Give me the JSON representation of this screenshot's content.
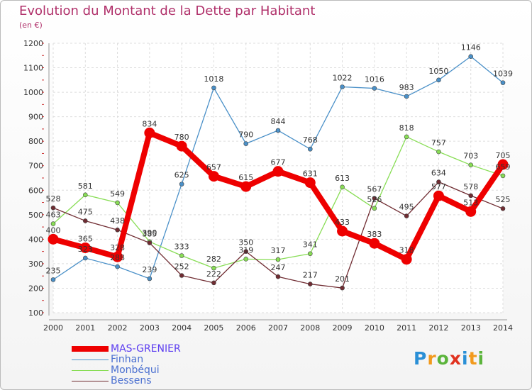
{
  "header": {
    "title": "Evolution du Montant de la Dette par Habitant",
    "unit": "(en €)"
  },
  "logo_text": "Proxiti",
  "chart_data": {
    "type": "line",
    "title": "Evolution du Montant de la Dette par Habitant",
    "subtitle": "(en €)",
    "xlabel": "",
    "ylabel": "",
    "ylim": [
      100,
      1200
    ],
    "yticks": [
      100,
      200,
      300,
      400,
      500,
      600,
      700,
      800,
      900,
      1000,
      1100,
      1200
    ],
    "grid": true,
    "legend_position": "bottom-left",
    "x": [
      "2000",
      "2001",
      "2002",
      "2003",
      "2004",
      "2005",
      "2006",
      "2007",
      "2008",
      "2009",
      "2010",
      "2011",
      "2012",
      "2013",
      "2014"
    ],
    "series": [
      {
        "name": "MAS-GRENIER",
        "color": "#ee0000",
        "values": [
          400,
          365,
          328,
          834,
          780,
          657,
          615,
          677,
          631,
          433,
          383,
          318,
          577,
          513,
          705
        ]
      },
      {
        "name": "Finhan",
        "color": "#4a90c8",
        "values": [
          235,
          323,
          288,
          239,
          625,
          1018,
          790,
          844,
          768,
          1022,
          1016,
          983,
          1050,
          1146,
          1039
        ]
      },
      {
        "name": "Monbéqui",
        "color": "#88dd55",
        "values": [
          463,
          581,
          549,
          390,
          333,
          282,
          319,
          317,
          341,
          613,
          526,
          818,
          757,
          703,
          659
        ]
      },
      {
        "name": "Bessens",
        "color": "#702c32",
        "values": [
          528,
          475,
          438,
          385,
          252,
          222,
          350,
          247,
          217,
          201,
          567,
          495,
          634,
          578,
          525
        ]
      }
    ]
  }
}
